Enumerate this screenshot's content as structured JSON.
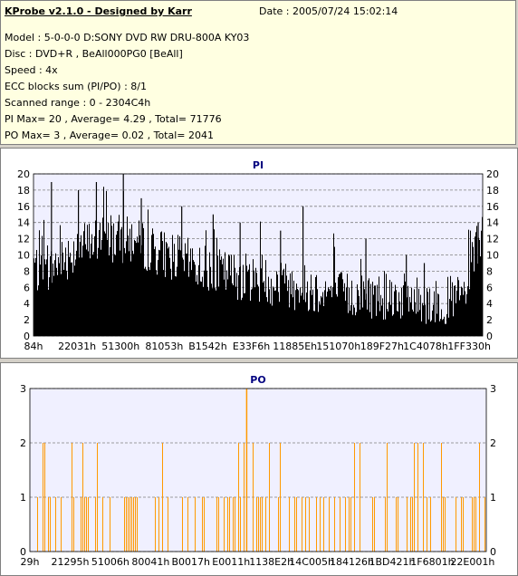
{
  "header": {
    "title": "KProbe v2.1.0 - Designed by Karr",
    "date": "Date : 2005/07/24 15:02:14",
    "lines": [
      "Model : 5-0-0-0 D:SONY    DVD RW DRU-800A  KY03",
      "Disc : DVD+R , BeAll000PG0 [BeAll]",
      "Speed : 4x",
      "ECC blocks sum (PI/PO) : 8/1",
      "Scanned range : 0 - 2304C4h",
      "PI Max= 20 , Average= 4.29 , Total= 71776",
      "PO Max= 3 , Average= 0.02 , Total= 2041"
    ]
  },
  "colors": {
    "pi_bar": "#000000",
    "po_bar": "#ff9900",
    "plot_bg": "#f0f0ff",
    "grid": "#808080"
  },
  "chart_data": [
    {
      "type": "bar",
      "title": "PI",
      "ylim": [
        0,
        20
      ],
      "yticks": [
        "0",
        "2",
        "4",
        "6",
        "8",
        "10",
        "12",
        "14",
        "16",
        "18",
        "20"
      ],
      "xticks": [
        "84h",
        "22031h",
        "51300h",
        "81053h",
        "B1542h",
        "E33F6h",
        "11885Eh",
        "151070h",
        "189F27h",
        "1C4078h",
        "1FF330h"
      ],
      "profile": [
        {
          "x": 0.0,
          "y": 9
        },
        {
          "x": 0.02,
          "y": 7
        },
        {
          "x": 0.05,
          "y": 9
        },
        {
          "x": 0.1,
          "y": 11
        },
        {
          "x": 0.15,
          "y": 12
        },
        {
          "x": 0.2,
          "y": 12
        },
        {
          "x": 0.3,
          "y": 10
        },
        {
          "x": 0.4,
          "y": 8
        },
        {
          "x": 0.5,
          "y": 7
        },
        {
          "x": 0.6,
          "y": 6
        },
        {
          "x": 0.7,
          "y": 5
        },
        {
          "x": 0.8,
          "y": 5
        },
        {
          "x": 0.9,
          "y": 4
        },
        {
          "x": 0.96,
          "y": 5
        },
        {
          "x": 0.99,
          "y": 12
        }
      ],
      "spikes": [
        {
          "x": 0.04,
          "y": 19
        },
        {
          "x": 0.1,
          "y": 18
        },
        {
          "x": 0.14,
          "y": 19
        },
        {
          "x": 0.2,
          "y": 20
        },
        {
          "x": 0.24,
          "y": 17
        },
        {
          "x": 0.33,
          "y": 16
        },
        {
          "x": 0.4,
          "y": 15
        },
        {
          "x": 0.46,
          "y": 14
        },
        {
          "x": 0.55,
          "y": 13
        },
        {
          "x": 0.6,
          "y": 16
        },
        {
          "x": 0.67,
          "y": 11
        },
        {
          "x": 0.74,
          "y": 12
        },
        {
          "x": 0.83,
          "y": 10
        },
        {
          "x": 0.87,
          "y": 9
        },
        {
          "x": 0.99,
          "y": 14
        }
      ]
    },
    {
      "type": "bar",
      "title": "PO",
      "ylim": [
        0,
        3
      ],
      "yticks": [
        "0",
        "1",
        "2",
        "3"
      ],
      "xticks": [
        "29h",
        "21295h",
        "51006h",
        "80041h",
        "B0017h",
        "E0011h",
        "1138E2h",
        "14C005h",
        "184126h",
        "1BD421h",
        "1F6801h",
        "22E001h"
      ],
      "level2_density": 0.12,
      "level1_density": 0.35,
      "peaks": [
        {
          "x": 0.475,
          "y": 3
        }
      ]
    }
  ]
}
